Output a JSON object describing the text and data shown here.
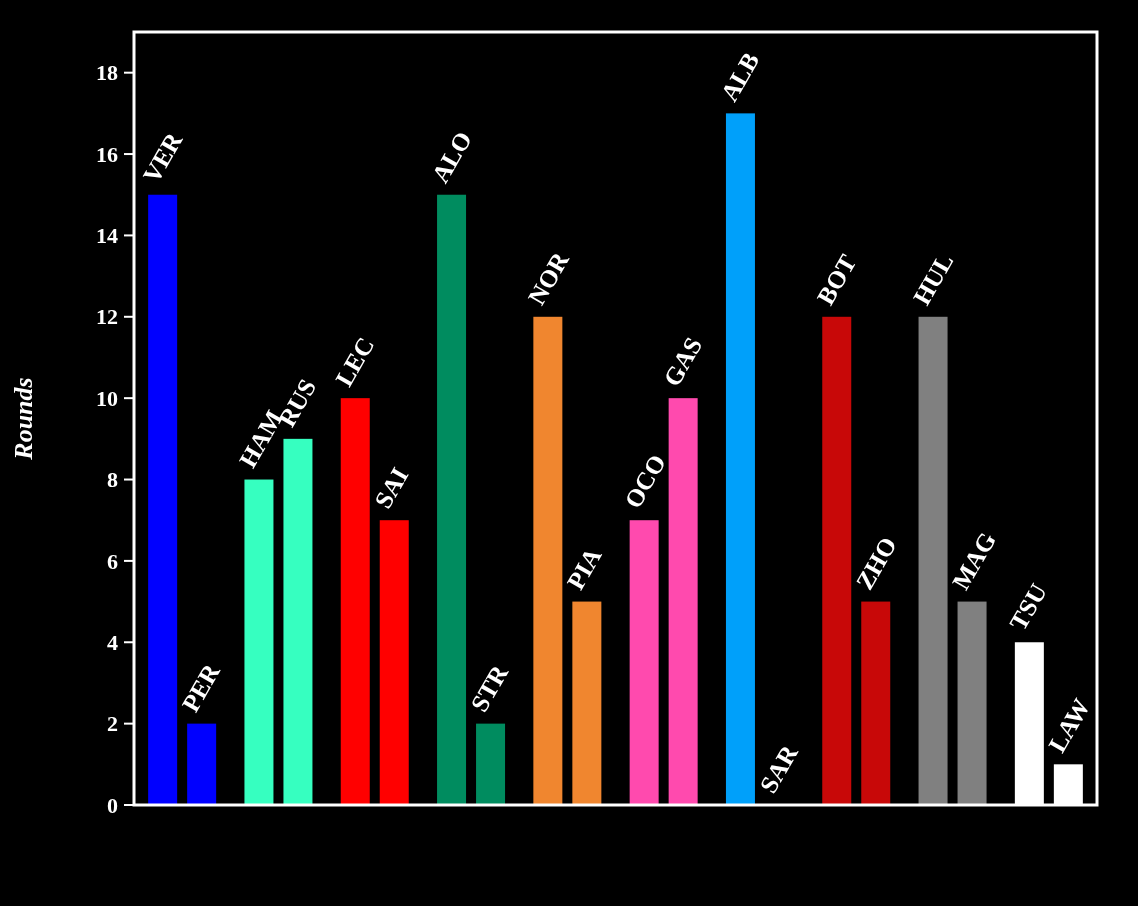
{
  "chart_data": {
    "type": "bar",
    "ylabel": "Rounds",
    "categories": [
      "VER",
      "PER",
      "HAM",
      "RUS",
      "LEC",
      "SAI",
      "ALO",
      "STR",
      "NOR",
      "PIA",
      "OCO",
      "GAS",
      "ALB",
      "SAR",
      "BOT",
      "ZHO",
      "HUL",
      "MAG",
      "TSU",
      "LAW"
    ],
    "values": [
      15,
      2,
      8,
      9,
      10,
      7,
      15,
      2,
      12,
      5,
      7,
      10,
      17,
      0,
      12,
      5,
      12,
      5,
      4,
      1
    ],
    "colors": [
      "#0000ff",
      "#0000ff",
      "#36ffc0",
      "#36ffc0",
      "#ff0000",
      "#ff0000",
      "#008c5f",
      "#008c5f",
      "#f0862f",
      "#f0862f",
      "#ff4aae",
      "#ff4aae",
      "#00a0fa",
      "#00a0fa",
      "#c80808",
      "#c80808",
      "#808080",
      "#808080",
      "#ffffff",
      "#ffffff"
    ],
    "ylim": [
      0,
      19
    ],
    "yticks": [
      0,
      2,
      4,
      6,
      8,
      10,
      12,
      14,
      16,
      18
    ]
  }
}
